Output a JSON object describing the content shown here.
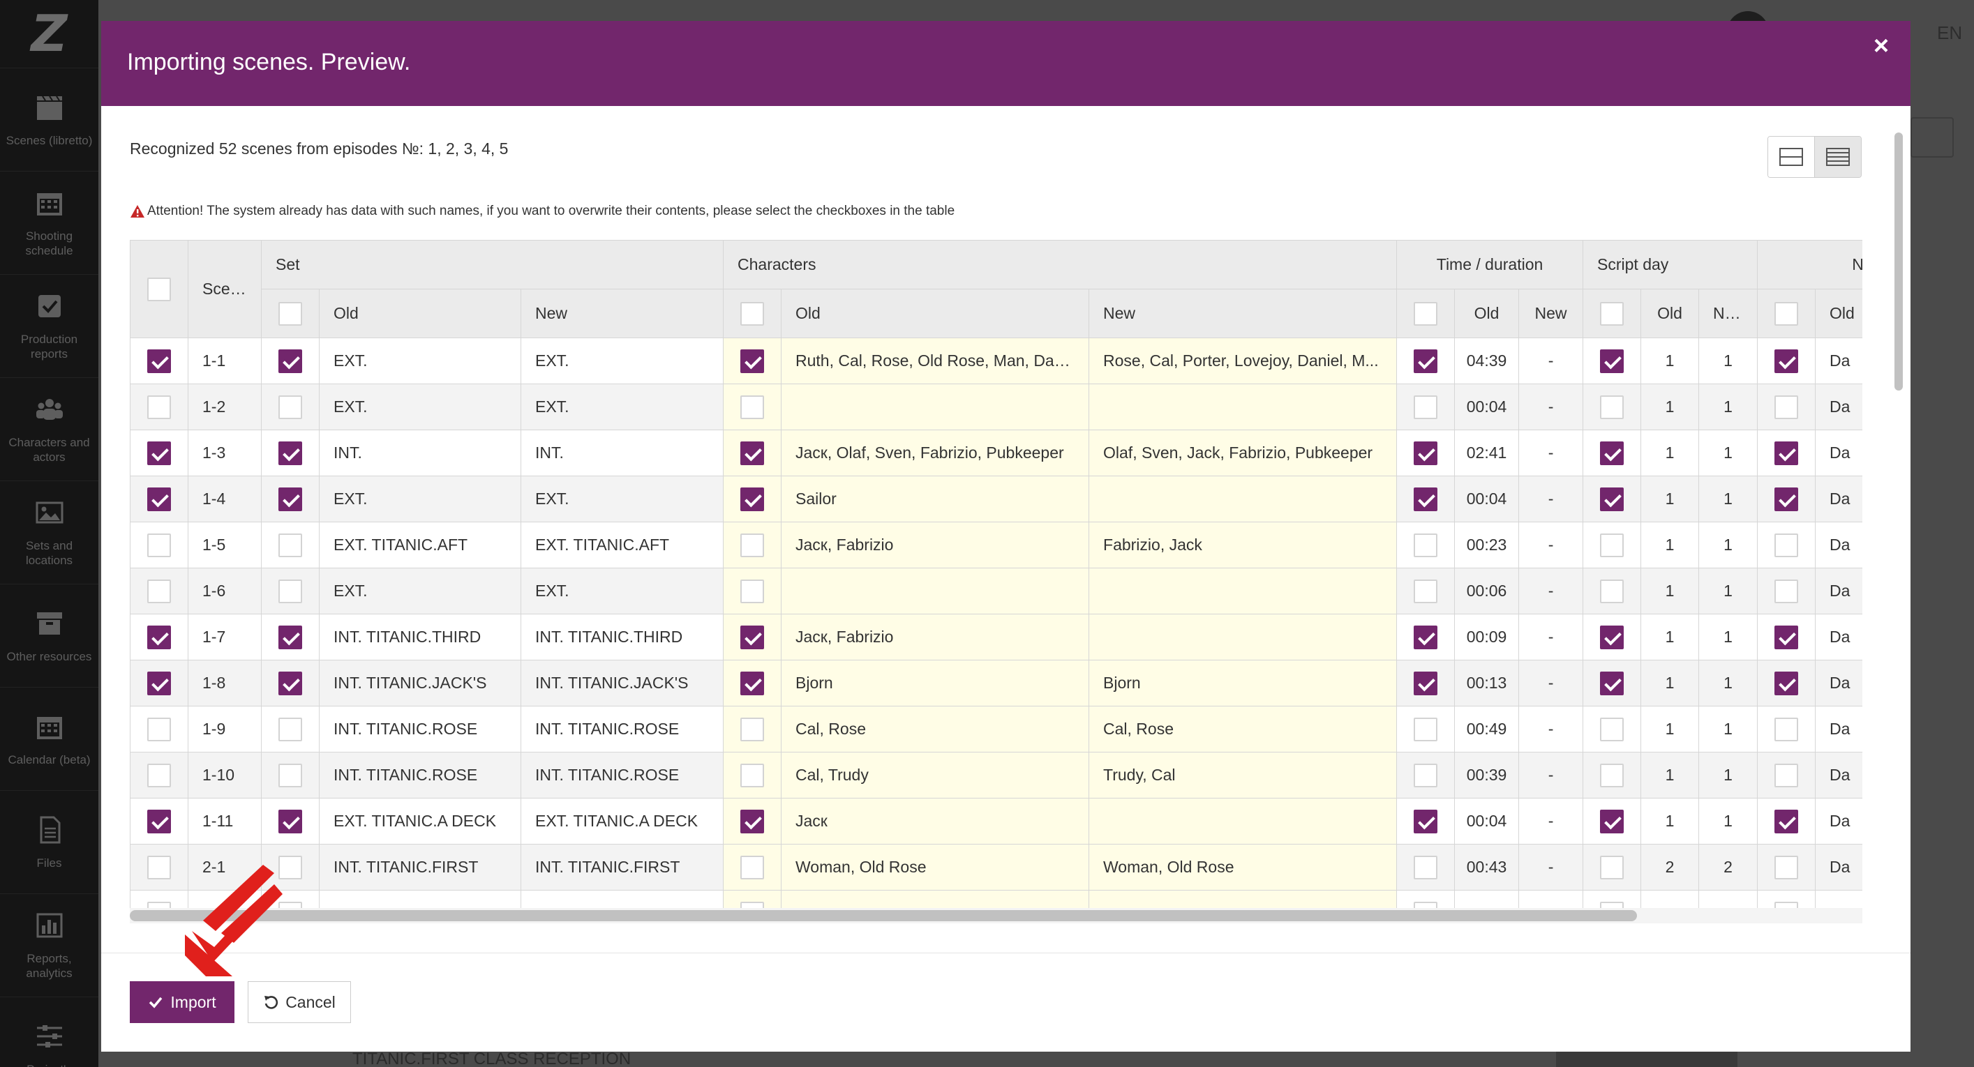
{
  "app": {
    "language": "EN",
    "bottom_text": "TITANIC.FIRST CLASS RECEPTION"
  },
  "sidebar": {
    "items": [
      {
        "label": "Scenes (libretto)",
        "icon": "clapperboard-icon"
      },
      {
        "label": "Shooting schedule",
        "icon": "calendar-icon"
      },
      {
        "label": "Production reports",
        "icon": "checkbox-icon"
      },
      {
        "label": "Characters and actors",
        "icon": "people-icon"
      },
      {
        "label": "Sets and locations",
        "icon": "image-icon"
      },
      {
        "label": "Other resources",
        "icon": "box-icon"
      },
      {
        "label": "Calendar (beta)",
        "icon": "calendar-icon"
      },
      {
        "label": "Files",
        "icon": "file-icon"
      },
      {
        "label": "Reports, analytics",
        "icon": "chart-icon"
      },
      {
        "label": "Project's",
        "icon": "sliders-icon"
      }
    ]
  },
  "modal": {
    "title": "Importing scenes. Preview.",
    "close": "×",
    "recognized": "Recognized 52 scenes from episodes №: 1, 2, 3, 4, 5",
    "attention": "Attention! The system already has data with such names, if you want to overwrite their contents, please select the checkboxes in the table",
    "import_label": "Import",
    "cancel_label": "Cancel"
  },
  "table": {
    "groups": {
      "scene": "Scene",
      "set": "Set",
      "characters": "Characters",
      "time": "Time / duration",
      "script_day": "Script day",
      "next": "N"
    },
    "sub": {
      "old": "Old",
      "new": "New"
    },
    "rows": [
      {
        "sel": true,
        "scene": "1-1",
        "set_cb": true,
        "set_old": "EXT.",
        "set_new": "EXT.",
        "ch_cb": true,
        "ch_old": "Ruth, Cal, Rose, Old Rose, Man, Dani...",
        "ch_new": "Rose, Cal, Porter, Lovejoy, Daniel, M...",
        "t_cb": true,
        "t_old": "04:39",
        "t_new": "-",
        "d_cb": true,
        "d_old": "1",
        "d_new": "1",
        "n_cb": true,
        "n_old": "Da"
      },
      {
        "sel": false,
        "scene": "1-2",
        "set_cb": false,
        "set_old": "EXT.",
        "set_new": "EXT.",
        "ch_cb": false,
        "ch_old": "",
        "ch_new": "",
        "t_cb": false,
        "t_old": "00:04",
        "t_new": "-",
        "d_cb": false,
        "d_old": "1",
        "d_new": "1",
        "n_cb": false,
        "n_old": "Da"
      },
      {
        "sel": true,
        "scene": "1-3",
        "set_cb": true,
        "set_old": "INT.",
        "set_new": "INT.",
        "ch_cb": true,
        "ch_old": "Jacк, Olaf, Sven, Fabrizio, Pubkeeper",
        "ch_new": "Olaf, Sven, Jack, Fabrizio, Pubkeeper",
        "t_cb": true,
        "t_old": "02:41",
        "t_new": "-",
        "d_cb": true,
        "d_old": "1",
        "d_new": "1",
        "n_cb": true,
        "n_old": "Da"
      },
      {
        "sel": true,
        "scene": "1-4",
        "set_cb": true,
        "set_old": "EXT.",
        "set_new": "EXT.",
        "ch_cb": true,
        "ch_old": "Sailor",
        "ch_new": "",
        "t_cb": true,
        "t_old": "00:04",
        "t_new": "-",
        "d_cb": true,
        "d_old": "1",
        "d_new": "1",
        "n_cb": true,
        "n_old": "Da"
      },
      {
        "sel": false,
        "scene": "1-5",
        "set_cb": false,
        "set_old": "EXT. TITANIC.AFT",
        "set_new": "EXT. TITANIC.AFT",
        "ch_cb": false,
        "ch_old": "Jacк, Fabrizio",
        "ch_new": "Fabrizio, Jack",
        "t_cb": false,
        "t_old": "00:23",
        "t_new": "-",
        "d_cb": false,
        "d_old": "1",
        "d_new": "1",
        "n_cb": false,
        "n_old": "Da"
      },
      {
        "sel": false,
        "scene": "1-6",
        "set_cb": false,
        "set_old": "EXT.",
        "set_new": "EXT.",
        "ch_cb": false,
        "ch_old": "",
        "ch_new": "",
        "t_cb": false,
        "t_old": "00:06",
        "t_new": "-",
        "d_cb": false,
        "d_old": "1",
        "d_new": "1",
        "n_cb": false,
        "n_old": "Da"
      },
      {
        "sel": true,
        "scene": "1-7",
        "set_cb": true,
        "set_old": "INT. TITANIC.THIRD",
        "set_new": "INT. TITANIC.THIRD",
        "ch_cb": true,
        "ch_old": "Jacк, Fabrizio",
        "ch_new": "",
        "t_cb": true,
        "t_old": "00:09",
        "t_new": "-",
        "d_cb": true,
        "d_old": "1",
        "d_new": "1",
        "n_cb": true,
        "n_old": "Da"
      },
      {
        "sel": true,
        "scene": "1-8",
        "set_cb": true,
        "set_old": "INT. TITANIC.JACK'S",
        "set_new": "INT. TITANIC.JACK'S",
        "ch_cb": true,
        "ch_old": "Bjorn",
        "ch_new": "Bjorn",
        "t_cb": true,
        "t_old": "00:13",
        "t_new": "-",
        "d_cb": true,
        "d_old": "1",
        "d_new": "1",
        "n_cb": true,
        "n_old": "Da"
      },
      {
        "sel": false,
        "scene": "1-9",
        "set_cb": false,
        "set_old": "INT. TITANIC.ROSE",
        "set_new": "INT. TITANIC.ROSE",
        "ch_cb": false,
        "ch_old": "Cal, Rose",
        "ch_new": "Cal, Rose",
        "t_cb": false,
        "t_old": "00:49",
        "t_new": "-",
        "d_cb": false,
        "d_old": "1",
        "d_new": "1",
        "n_cb": false,
        "n_old": "Da"
      },
      {
        "sel": false,
        "scene": "1-10",
        "set_cb": false,
        "set_old": "INT. TITANIC.ROSE",
        "set_new": "INT. TITANIC.ROSE",
        "ch_cb": false,
        "ch_old": "Cal, Trudy",
        "ch_new": "Trudy, Cal",
        "t_cb": false,
        "t_old": "00:39",
        "t_new": "-",
        "d_cb": false,
        "d_old": "1",
        "d_new": "1",
        "n_cb": false,
        "n_old": "Da"
      },
      {
        "sel": true,
        "scene": "1-11",
        "set_cb": true,
        "set_old": "EXT. TITANIC.A DECK",
        "set_new": "EXT. TITANIC.A DECK",
        "ch_cb": true,
        "ch_old": "Jacк",
        "ch_new": "",
        "t_cb": true,
        "t_old": "00:04",
        "t_new": "-",
        "d_cb": true,
        "d_old": "1",
        "d_new": "1",
        "n_cb": true,
        "n_old": "Da"
      },
      {
        "sel": false,
        "scene": "2-1",
        "set_cb": false,
        "set_old": "INT. TITANIC.FIRST",
        "set_new": "INT. TITANIC.FIRST",
        "ch_cb": false,
        "ch_old": "Woman, Old Rose",
        "ch_new": "Woman, Old Rose",
        "t_cb": false,
        "t_old": "00:43",
        "t_new": "-",
        "d_cb": false,
        "d_old": "2",
        "d_new": "2",
        "n_cb": false,
        "n_old": "Da"
      },
      {
        "sel": false,
        "scene": "",
        "set_cb": false,
        "set_old": "",
        "set_new": "",
        "ch_cb": false,
        "ch_old": "",
        "ch_new": "",
        "t_cb": false,
        "t_old": "",
        "t_new": "",
        "d_cb": false,
        "d_old": "",
        "d_new": "",
        "n_cb": false,
        "n_old": ""
      }
    ]
  },
  "colors": {
    "accent": "#72266c",
    "sidebar": "#151515",
    "highlight": "#fffde6",
    "arrow": "#e0201c"
  }
}
